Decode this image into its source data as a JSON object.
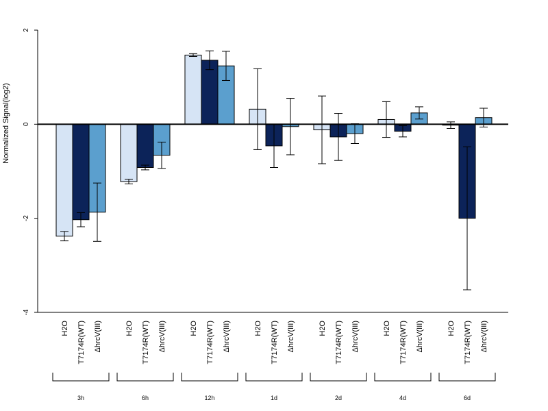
{
  "chart_data": {
    "type": "bar",
    "ylabel": "Normalized Signal(log2)",
    "ylim": [
      -4,
      2
    ],
    "yticks": [
      -4,
      -2,
      0,
      2
    ],
    "groups": [
      "3h",
      "6h",
      "12h",
      "1d",
      "2d",
      "4d",
      "6d"
    ],
    "series": [
      {
        "name": "H2O",
        "color": "#d6e4f5",
        "values": [
          -2.38,
          -1.22,
          1.47,
          0.32,
          -0.12,
          0.1,
          -0.02
        ],
        "errors": [
          0.1,
          0.05,
          0.03,
          0.86,
          0.72,
          0.38,
          0.07
        ]
      },
      {
        "name": "T7174R(WT)",
        "color": "#0c2359",
        "values": [
          -2.03,
          -0.92,
          1.36,
          -0.46,
          -0.27,
          -0.15,
          -2.0
        ],
        "errors": [
          0.15,
          0.05,
          0.2,
          0.46,
          0.5,
          0.12,
          1.52
        ]
      },
      {
        "name": "ΔhrcV(III)",
        "color": "#5b9fce",
        "values": [
          -1.87,
          -0.66,
          1.24,
          -0.05,
          -0.2,
          0.24,
          0.14
        ],
        "errors": [
          0.62,
          0.28,
          0.31,
          0.6,
          0.21,
          0.13,
          0.2
        ]
      }
    ]
  }
}
